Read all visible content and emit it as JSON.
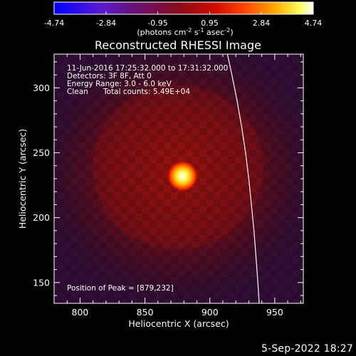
{
  "colorbar": {
    "tick_labels": [
      "-4.74",
      "-2.84",
      "-0.95",
      "0.95",
      "2.84",
      "4.74"
    ],
    "tick_values": [
      -4.74,
      -2.84,
      -0.95,
      0.95,
      2.84,
      4.74
    ],
    "range": [
      -4.74,
      4.74
    ],
    "unit_main": "(photons cm",
    "unit_exp1": "-2",
    "unit_mid": " s",
    "unit_exp2": "-1",
    "unit_end": " asec",
    "unit_exp3": "-2",
    "unit_close": ")"
  },
  "chart_data": {
    "type": "heatmap",
    "title": "Reconstructed RHESSI Image",
    "xlabel": "Heliocentric X (arcsec)",
    "ylabel": "Heliocentric Y (arcsec)",
    "xlim": [
      780,
      972
    ],
    "ylim": [
      134,
      326
    ],
    "xticks": [
      800,
      850,
      900,
      950
    ],
    "yticks": [
      150,
      200,
      250,
      300
    ],
    "xtick_labels": [
      "800",
      "850",
      "900",
      "950"
    ],
    "ytick_labels": [
      "150",
      "200",
      "250",
      "300"
    ],
    "peak": [
      879,
      232
    ],
    "colormap": "hot",
    "annotations": {
      "time": "11-Jun-2016 17:25:32.000 to 17:31:32.000",
      "detectors": "Detectors: 3F 8F, Att 0",
      "energy": "Energy Range: 3.0 - 6.0 keV",
      "method": "Clean",
      "counts": "Total counts: 5.49E+04",
      "peak_label": "Position of Peak = [879,232]"
    },
    "limb_curve": [
      [
        913.5,
        326
      ],
      [
        917,
        310
      ],
      [
        921,
        290
      ],
      [
        924.5,
        270
      ],
      [
        927.5,
        250
      ],
      [
        930,
        230
      ],
      [
        932,
        210
      ],
      [
        934,
        190
      ],
      [
        935.5,
        170
      ],
      [
        937,
        150
      ],
      [
        938,
        134
      ]
    ]
  },
  "footer": {
    "date": "5-Sep-2022 18:27"
  },
  "colors": {
    "axis": "#ffffff",
    "limb": "#ffffff",
    "background": "#000000"
  }
}
